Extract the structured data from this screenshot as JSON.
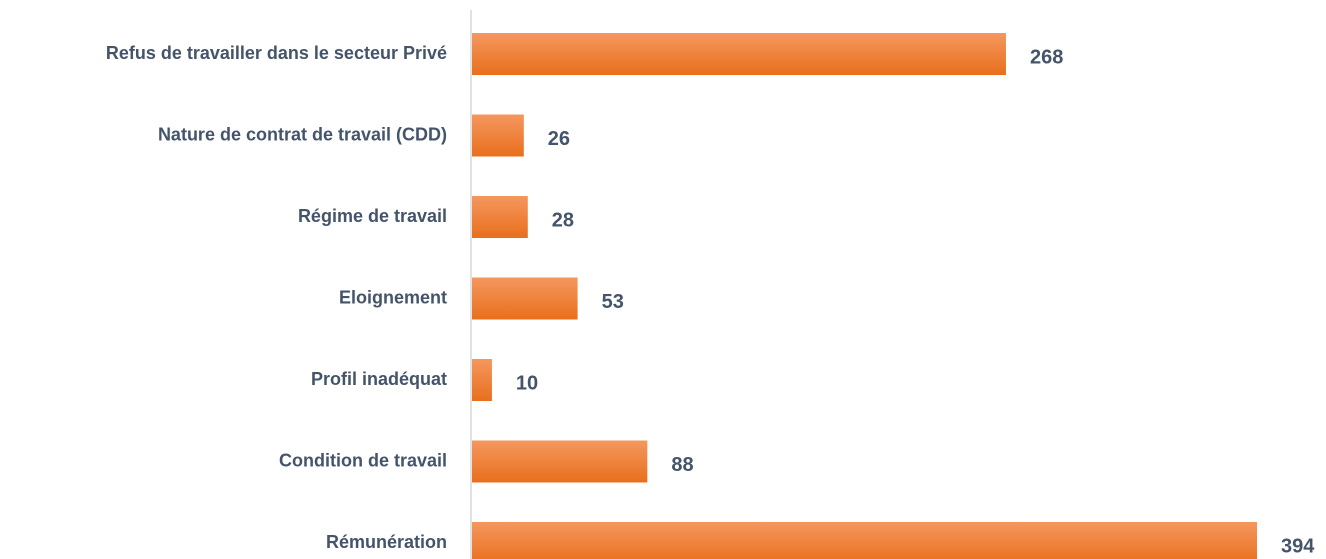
{
  "chart_data": {
    "type": "barh",
    "categories": [
      "Refus de travailler dans le secteur Privé",
      "Nature de contrat de travail (CDD)",
      "Régime de travail",
      "Eloignement",
      "Profil inadéquat",
      "Condition de travail",
      "Rémunération"
    ],
    "values": [
      268,
      26,
      28,
      53,
      10,
      88,
      394
    ],
    "color": "#ed7d31"
  }
}
